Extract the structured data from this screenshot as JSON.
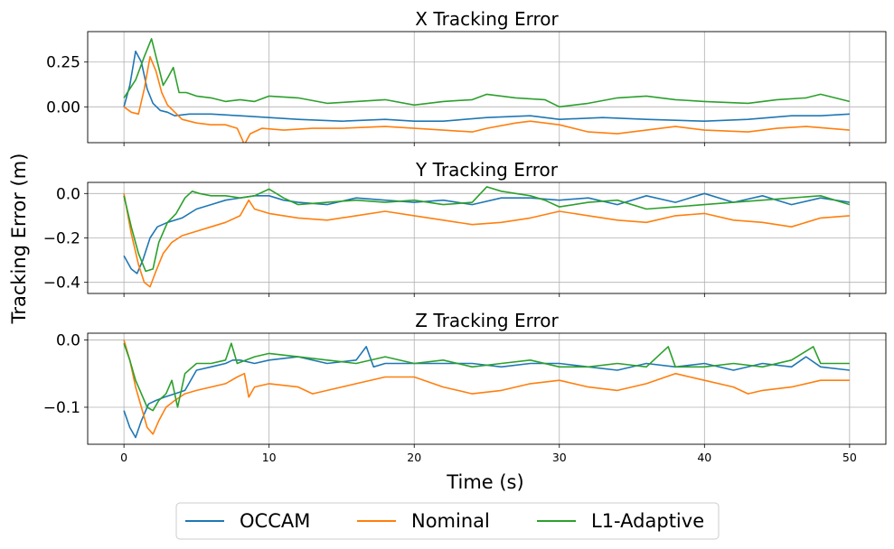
{
  "chart_data": {
    "type": "line",
    "xlabel": "Time (s)",
    "ylabel": "Tracking Error (m)",
    "xlim": [
      -2.5,
      52.5
    ],
    "xticks": [
      0,
      10,
      20,
      30,
      40,
      50
    ],
    "grid": true,
    "legend": {
      "location": "bottom-center",
      "entries": [
        "OCCAM",
        "Nominal",
        "L1-Adaptive"
      ]
    },
    "series_colors": {
      "OCCAM": "#1f77b4",
      "Nominal": "#ff7f0e",
      "L1-Adaptive": "#2ca02c"
    },
    "panels": [
      {
        "title": "X Tracking Error",
        "ylim": [
          -0.2,
          0.42
        ],
        "yticks": [
          0.25,
          0.0
        ],
        "ytick_labels": [
          "0.25",
          "0.00"
        ],
        "series": [
          {
            "name": "OCCAM",
            "x": [
              0,
              0.4,
              0.8,
              1.2,
              1.6,
              2.0,
              2.5,
              3.0,
              3.5,
              4.5,
              6,
              8,
              10,
              12,
              15,
              18,
              20,
              22,
              25,
              28,
              30,
              33,
              36,
              40,
              43,
              46,
              48,
              50
            ],
            "y": [
              0.0,
              0.12,
              0.31,
              0.25,
              0.1,
              0.02,
              -0.02,
              -0.03,
              -0.05,
              -0.04,
              -0.04,
              -0.05,
              -0.06,
              -0.07,
              -0.08,
              -0.07,
              -0.08,
              -0.08,
              -0.06,
              -0.05,
              -0.07,
              -0.06,
              -0.07,
              -0.08,
              -0.07,
              -0.05,
              -0.05,
              -0.04
            ]
          },
          {
            "name": "Nominal",
            "x": [
              0,
              0.5,
              1.0,
              1.4,
              1.8,
              2.2,
              2.6,
              3.0,
              4,
              5,
              6,
              7,
              7.8,
              8.3,
              8.7,
              9.5,
              11,
              13,
              15,
              18,
              20,
              22,
              24,
              25,
              27,
              28,
              30,
              32,
              34,
              36,
              38,
              40,
              43,
              45,
              47,
              50
            ],
            "y": [
              0.0,
              -0.03,
              -0.04,
              0.1,
              0.28,
              0.2,
              0.08,
              0.01,
              -0.07,
              -0.09,
              -0.1,
              -0.1,
              -0.12,
              -0.21,
              -0.15,
              -0.12,
              -0.13,
              -0.12,
              -0.12,
              -0.11,
              -0.12,
              -0.13,
              -0.14,
              -0.12,
              -0.09,
              -0.08,
              -0.1,
              -0.14,
              -0.15,
              -0.13,
              -0.11,
              -0.13,
              -0.14,
              -0.12,
              -0.11,
              -0.13
            ]
          },
          {
            "name": "L1-Adaptive",
            "x": [
              0,
              0.8,
              1.4,
              1.9,
              2.3,
              2.7,
              3.0,
              3.4,
              3.8,
              4.3,
              5,
              6,
              7,
              8,
              9,
              10,
              12,
              14,
              16,
              18,
              20,
              22,
              24,
              25,
              27,
              29,
              30,
              32,
              34,
              36,
              38,
              40,
              43,
              45,
              47,
              48,
              50
            ],
            "y": [
              0.05,
              0.15,
              0.28,
              0.38,
              0.25,
              0.12,
              0.16,
              0.22,
              0.08,
              0.08,
              0.06,
              0.05,
              0.03,
              0.04,
              0.03,
              0.06,
              0.05,
              0.02,
              0.03,
              0.04,
              0.01,
              0.03,
              0.04,
              0.07,
              0.05,
              0.04,
              0.0,
              0.02,
              0.05,
              0.06,
              0.04,
              0.03,
              0.02,
              0.04,
              0.05,
              0.07,
              0.03
            ]
          }
        ]
      },
      {
        "title": "Y Tracking Error",
        "ylim": [
          -0.45,
          0.05
        ],
        "yticks": [
          0.0,
          -0.2,
          -0.4
        ],
        "ytick_labels": [
          "0.0",
          "−0.2",
          "−0.4"
        ],
        "series": [
          {
            "name": "OCCAM",
            "x": [
              0,
              0.5,
              0.9,
              1.3,
              1.8,
              2.3,
              3.0,
              4,
              5,
              6,
              7,
              8,
              9,
              10,
              11,
              12,
              14,
              16,
              18,
              20,
              22,
              24,
              26,
              28,
              30,
              32,
              34,
              36,
              38,
              40,
              42,
              44,
              46,
              48,
              50
            ],
            "y": [
              -0.28,
              -0.34,
              -0.36,
              -0.3,
              -0.2,
              -0.15,
              -0.13,
              -0.11,
              -0.07,
              -0.05,
              -0.03,
              -0.02,
              -0.01,
              -0.01,
              -0.03,
              -0.04,
              -0.05,
              -0.02,
              -0.03,
              -0.04,
              -0.03,
              -0.05,
              -0.02,
              -0.02,
              -0.03,
              -0.02,
              -0.05,
              -0.01,
              -0.04,
              0.0,
              -0.04,
              -0.01,
              -0.05,
              -0.02,
              -0.04
            ]
          },
          {
            "name": "Nominal",
            "x": [
              0,
              0.5,
              1.0,
              1.4,
              1.8,
              2.2,
              2.7,
              3.3,
              4,
              5,
              6,
              7,
              8,
              8.6,
              9,
              10,
              12,
              14,
              16,
              18,
              20,
              22,
              24,
              26,
              28,
              30,
              32,
              34,
              36,
              38,
              40,
              42,
              44,
              46,
              48,
              50
            ],
            "y": [
              0.0,
              -0.18,
              -0.32,
              -0.4,
              -0.42,
              -0.35,
              -0.27,
              -0.22,
              -0.19,
              -0.17,
              -0.15,
              -0.13,
              -0.1,
              -0.03,
              -0.07,
              -0.09,
              -0.11,
              -0.12,
              -0.1,
              -0.08,
              -0.1,
              -0.12,
              -0.14,
              -0.13,
              -0.11,
              -0.08,
              -0.1,
              -0.12,
              -0.13,
              -0.1,
              -0.09,
              -0.12,
              -0.13,
              -0.15,
              -0.11,
              -0.1
            ]
          },
          {
            "name": "L1-Adaptive",
            "x": [
              0,
              0.5,
              1.0,
              1.5,
              2.0,
              2.4,
              3.0,
              3.6,
              4.2,
              4.7,
              5.2,
              6,
              7,
              8,
              9,
              10,
              11,
              12,
              14,
              16,
              18,
              20,
              22,
              24,
              25,
              26,
              28,
              29,
              30,
              32,
              34,
              36,
              38,
              40,
              42,
              44,
              46,
              48,
              50
            ],
            "y": [
              -0.01,
              -0.15,
              -0.27,
              -0.35,
              -0.34,
              -0.22,
              -0.13,
              -0.09,
              -0.02,
              0.01,
              0.0,
              -0.01,
              -0.01,
              -0.02,
              -0.01,
              0.02,
              -0.02,
              -0.05,
              -0.04,
              -0.03,
              -0.04,
              -0.03,
              -0.05,
              -0.04,
              0.03,
              0.01,
              -0.01,
              -0.03,
              -0.06,
              -0.04,
              -0.03,
              -0.07,
              -0.06,
              -0.05,
              -0.04,
              -0.03,
              -0.02,
              -0.01,
              -0.05
            ]
          }
        ]
      },
      {
        "title": "Z Tracking Error",
        "ylim": [
          -0.155,
          0.01
        ],
        "yticks": [
          0.0,
          -0.1
        ],
        "ytick_labels": [
          "0.0",
          "−0.1"
        ],
        "series": [
          {
            "name": "OCCAM",
            "x": [
              0,
              0.4,
              0.8,
              1.2,
              1.7,
              2.2,
              2.8,
              3.5,
              4.2,
              5,
              6,
              7,
              7.5,
              8,
              9,
              10,
              12,
              14,
              16,
              16.7,
              17.2,
              18,
              20,
              22,
              24,
              26,
              28,
              30,
              32,
              34,
              36,
              38,
              40,
              42,
              44,
              46,
              47,
              48,
              50
            ],
            "y": [
              -0.105,
              -0.13,
              -0.145,
              -0.12,
              -0.095,
              -0.09,
              -0.085,
              -0.08,
              -0.075,
              -0.045,
              -0.04,
              -0.035,
              -0.03,
              -0.03,
              -0.035,
              -0.03,
              -0.025,
              -0.035,
              -0.03,
              -0.01,
              -0.04,
              -0.035,
              -0.035,
              -0.035,
              -0.035,
              -0.04,
              -0.035,
              -0.035,
              -0.04,
              -0.045,
              -0.035,
              -0.04,
              -0.035,
              -0.045,
              -0.035,
              -0.04,
              -0.025,
              -0.04,
              -0.045
            ]
          },
          {
            "name": "Nominal",
            "x": [
              0,
              0.4,
              0.8,
              1.2,
              1.6,
              2.0,
              2.4,
              2.9,
              3.5,
              4.2,
              5,
              6,
              7,
              7.8,
              8.3,
              8.6,
              9,
              10,
              12,
              13,
              14,
              16,
              18,
              20,
              22,
              24,
              26,
              28,
              30,
              32,
              34,
              36,
              38,
              40,
              42,
              43,
              44,
              46,
              48,
              50
            ],
            "y": [
              0.0,
              -0.03,
              -0.07,
              -0.1,
              -0.13,
              -0.14,
              -0.12,
              -0.1,
              -0.09,
              -0.08,
              -0.075,
              -0.07,
              -0.065,
              -0.055,
              -0.05,
              -0.085,
              -0.07,
              -0.065,
              -0.07,
              -0.08,
              -0.075,
              -0.065,
              -0.055,
              -0.055,
              -0.07,
              -0.08,
              -0.075,
              -0.065,
              -0.06,
              -0.07,
              -0.075,
              -0.065,
              -0.05,
              -0.06,
              -0.07,
              -0.08,
              -0.075,
              -0.07,
              -0.06,
              -0.06
            ]
          },
          {
            "name": "L1-Adaptive",
            "x": [
              0,
              0.4,
              0.8,
              1.2,
              1.6,
              2.0,
              2.4,
              2.9,
              3.3,
              3.7,
              4.2,
              5,
              6,
              7,
              7.4,
              7.8,
              9,
              10,
              12,
              14,
              16,
              18,
              20,
              22,
              24,
              26,
              28,
              30,
              32,
              34,
              36,
              37.5,
              38,
              40,
              42,
              44,
              46,
              47.5,
              48,
              50
            ],
            "y": [
              -0.005,
              -0.03,
              -0.06,
              -0.08,
              -0.1,
              -0.105,
              -0.09,
              -0.08,
              -0.06,
              -0.1,
              -0.05,
              -0.035,
              -0.035,
              -0.03,
              -0.005,
              -0.035,
              -0.025,
              -0.02,
              -0.025,
              -0.03,
              -0.035,
              -0.025,
              -0.035,
              -0.03,
              -0.04,
              -0.035,
              -0.03,
              -0.04,
              -0.04,
              -0.035,
              -0.04,
              -0.01,
              -0.04,
              -0.04,
              -0.035,
              -0.04,
              -0.03,
              -0.01,
              -0.035,
              -0.035
            ]
          }
        ]
      }
    ]
  }
}
